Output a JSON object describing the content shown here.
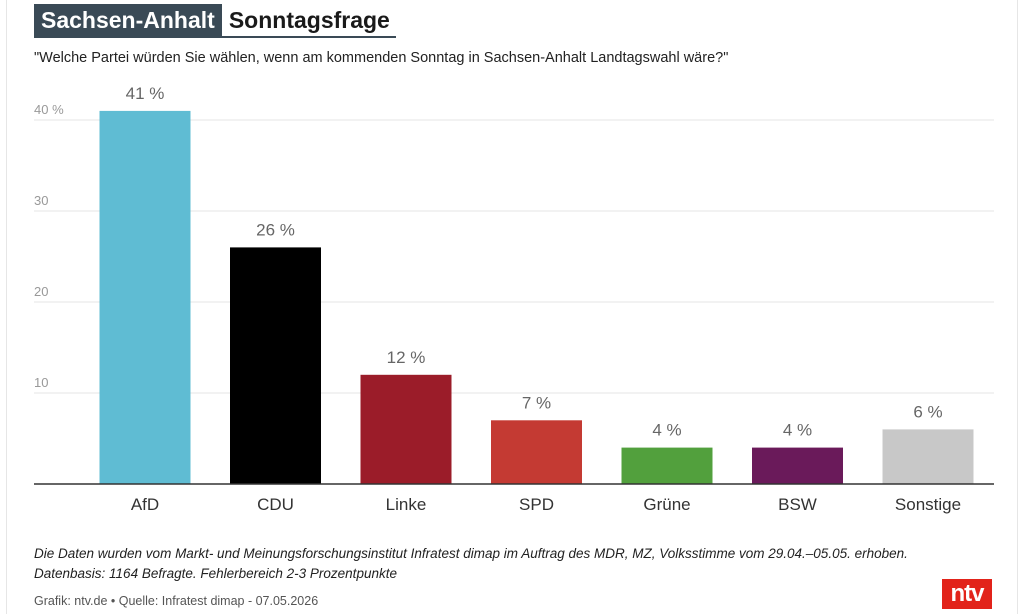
{
  "header": {
    "region": "Sachsen-Anhalt",
    "title": "Sonntagsfrage"
  },
  "question": "\"Welche Partei würden Sie wählen, wenn am kommenden Sonntag in Sachsen-Anhalt Landtagswahl wäre?\"",
  "footnote": "Die Daten wurden vom Markt- und Meinungsforschungsinstitut Infratest dimap im Auftrag des MDR, MZ, Volksstimme vom 29.04.–05.05. erhoben. Datenbasis: 1164 Befragte. Fehlerbereich 2-3 Prozentpunkte",
  "source": "Grafik: ntv.de • Quelle: Infratest dimap - 07.05.2026",
  "logo": "ntv",
  "colors": {
    "AfD": "#5fbcd3",
    "CDU": "#000000",
    "Linke": "#9b1c29",
    "SPD": "#c43a33",
    "Grüne": "#52a03d",
    "BSW": "#6a1a5a",
    "Sonstige": "#c8c8c8",
    "header_bg": "#3a4a56",
    "logo_bg": "#e2231a"
  },
  "chart_data": {
    "type": "bar",
    "categories": [
      "AfD",
      "CDU",
      "Linke",
      "SPD",
      "Grüne",
      "BSW",
      "Sonstige"
    ],
    "values": [
      41,
      26,
      12,
      7,
      4,
      4,
      6
    ],
    "value_labels": [
      "41 %",
      "26 %",
      "12 %",
      "7 %",
      "4 %",
      "4 %",
      "6 %"
    ],
    "yticks": [
      10,
      20,
      30,
      40
    ],
    "ytick_labels": [
      "10",
      "20",
      "30",
      "40 %"
    ],
    "ylim": [
      0,
      41
    ],
    "grid": true,
    "legend": "none"
  }
}
